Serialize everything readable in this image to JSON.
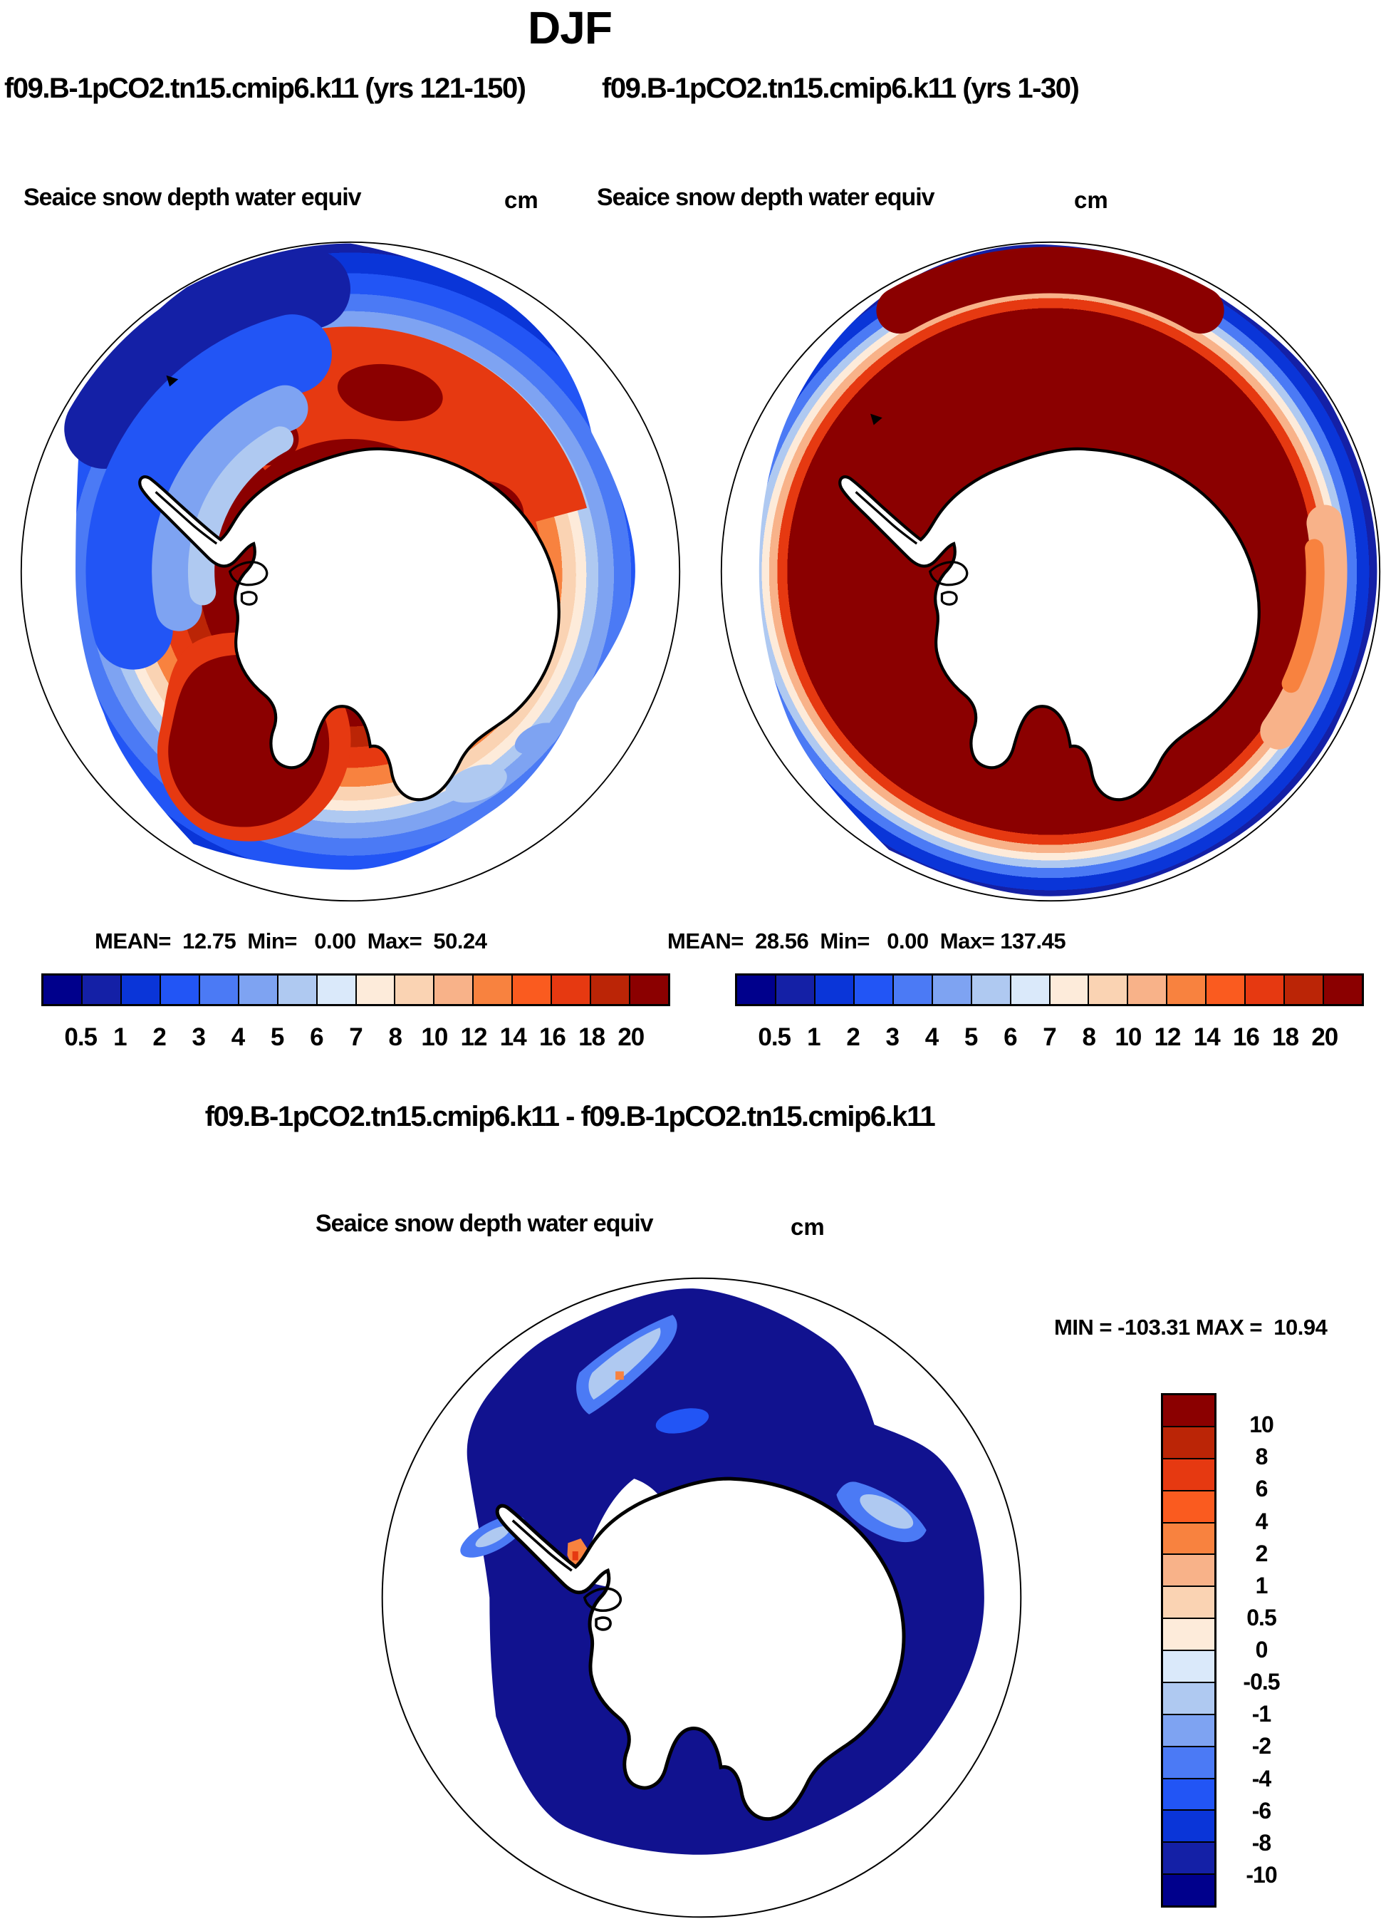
{
  "header": {
    "season_title": "DJF"
  },
  "panels": [
    {
      "subtitle": "f09.B-1pCO2.tn15.cmip6.k11 (yrs 121-150)",
      "field_label": "Seaice snow depth water equiv",
      "units": "cm",
      "stats_label": "MEAN=  12.75  Min=   0.00  Max=  50.24",
      "stats": {
        "mean": 12.75,
        "min": 0.0,
        "max": 50.24
      },
      "colorbar_ticks": [
        "0.5",
        "1",
        "2",
        "3",
        "4",
        "5",
        "6",
        "7",
        "8",
        "10",
        "12",
        "14",
        "16",
        "18",
        "20"
      ]
    },
    {
      "subtitle": "f09.B-1pCO2.tn15.cmip6.k11 (yrs 1-30)",
      "field_label": "Seaice snow depth water equiv",
      "units": "cm",
      "stats_label": "MEAN=  28.56  Min=   0.00  Max= 137.45",
      "stats": {
        "mean": 28.56,
        "min": 0.0,
        "max": 137.45
      },
      "colorbar_ticks": [
        "0.5",
        "1",
        "2",
        "3",
        "4",
        "5",
        "6",
        "7",
        "8",
        "10",
        "12",
        "14",
        "16",
        "18",
        "20"
      ]
    }
  ],
  "difference": {
    "title": "f09.B-1pCO2.tn15.cmip6.k11 - f09.B-1pCO2.tn15.cmip6.k11",
    "field_label": "Seaice snow depth water equiv",
    "units": "cm",
    "range_label": "MIN = -103.31 MAX =  10.94",
    "min": -103.31,
    "max": 10.94,
    "colorbar_ticks": [
      "10",
      "8",
      "6",
      "4",
      "2",
      "1",
      "0.5",
      "0",
      "-0.5",
      "-1",
      "-2",
      "-4",
      "-6",
      "-8",
      "-10"
    ]
  },
  "palette_blue_to_red": [
    "#00008C",
    "#1420A6",
    "#0A35D8",
    "#2255F5",
    "#4B7AF5",
    "#7EA3F2",
    "#AFC9F1",
    "#DAE9FA",
    "#FDEBDA",
    "#FAD3B3",
    "#F8B289",
    "#F8823F",
    "#FA5B1F",
    "#E63911",
    "#BB2506",
    "#8B0000"
  ],
  "map_colors": {
    "background": "#FFFFFF",
    "coastline": "#000000",
    "diff_ocean_dominant": "#11128F",
    "continent": "#FFFFFF"
  },
  "chart_data": [
    {
      "type": "heatmap",
      "projection": "south-polar-stereographic",
      "title": "f09.B-1pCO2.tn15.cmip6.k11 (yrs 121-150)",
      "variable": "Seaice snow depth water equiv",
      "units": "cm",
      "stats": {
        "mean": 12.75,
        "min": 0.0,
        "max": 50.24
      },
      "levels": [
        0.5,
        1,
        2,
        3,
        4,
        5,
        6,
        7,
        8,
        10,
        12,
        14,
        16,
        18,
        20
      ],
      "legend_position": "below",
      "description": "Antarctic sea-ice snow depth: blue marginal ice fringe, broad red/orange pack north and east of the continent, dark maroon maximum in Ross/Amundsen sector (bottom-left)."
    },
    {
      "type": "heatmap",
      "projection": "south-polar-stereographic",
      "title": "f09.B-1pCO2.tn15.cmip6.k11 (yrs 1-30)",
      "variable": "Seaice snow depth water equiv",
      "units": "cm",
      "stats": {
        "mean": 28.56,
        "min": 0.0,
        "max": 137.45
      },
      "levels": [
        0.5,
        1,
        2,
        3,
        4,
        5,
        6,
        7,
        8,
        10,
        12,
        14,
        16,
        18,
        20
      ],
      "legend_position": "below",
      "description": "Same field for years 1-30: nearly the whole pack exceeds 20 cm (dark maroon) with only a narrow blue fringe at the ice edge."
    },
    {
      "type": "heatmap",
      "projection": "south-polar-stereographic",
      "title": "f09.B-1pCO2.tn15.cmip6.k11 - f09.B-1pCO2.tn15.cmip6.k11",
      "variable": "Seaice snow depth water equiv",
      "units": "cm",
      "stats": {
        "min": -103.31,
        "max": 10.94
      },
      "levels": [
        10,
        8,
        6,
        4,
        2,
        1,
        0.5,
        0,
        -0.5,
        -1,
        -2,
        -4,
        -6,
        -8,
        -10
      ],
      "legend_position": "right",
      "description": "Difference map: almost uniformly below -10 cm (dark navy) with a few lighter-blue streaks and tiny positive (orange) spots near the coast."
    }
  ]
}
